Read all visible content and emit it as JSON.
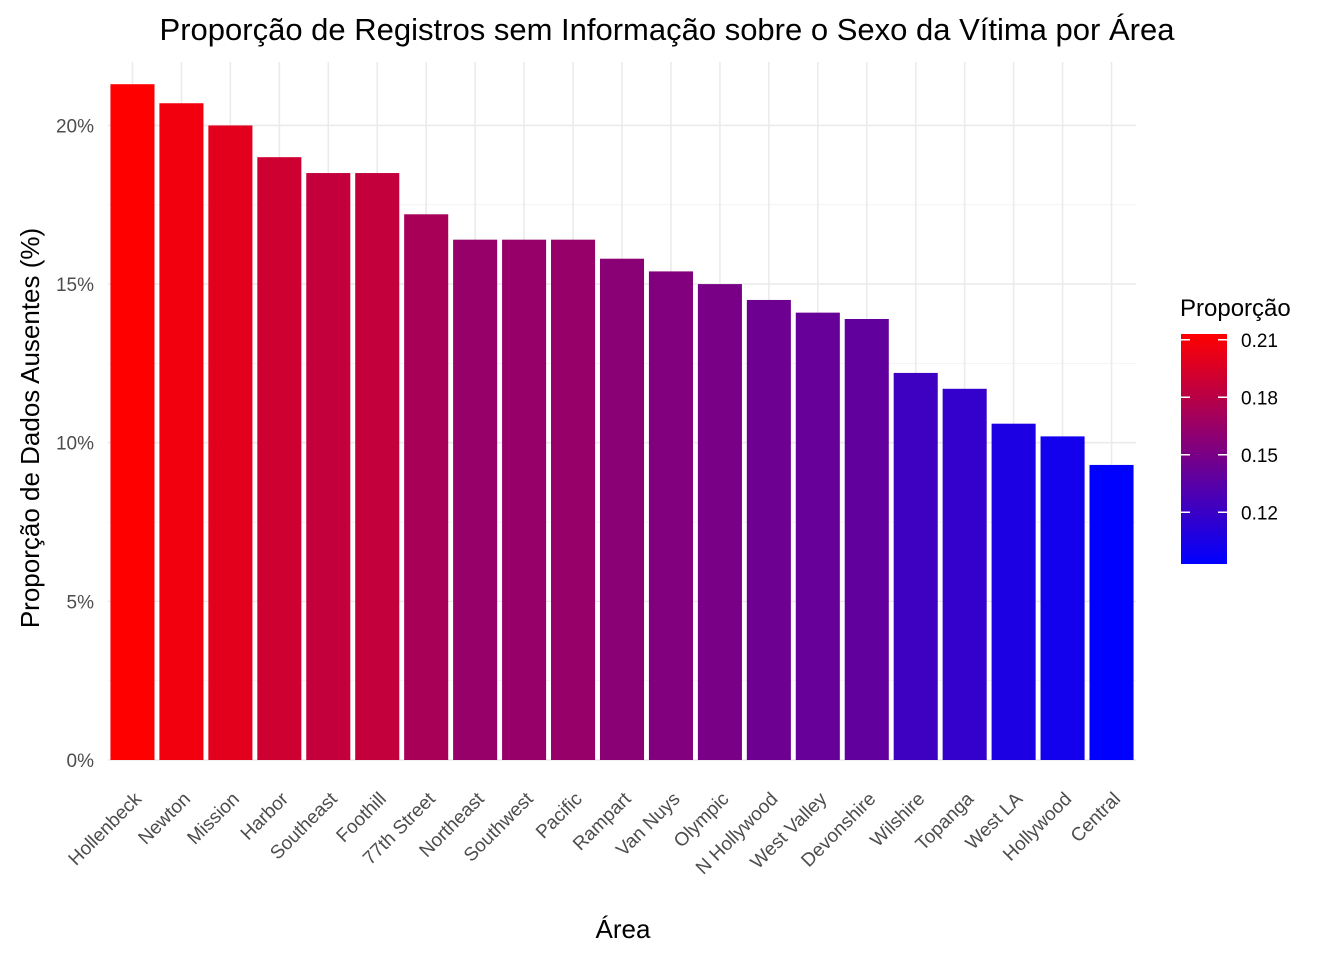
{
  "chart_data": {
    "type": "bar",
    "title": "Proporção de Registros sem Informação sobre o Sexo da Vítima por Área",
    "xlabel": "Área",
    "ylabel": "Proporção de Dados Ausentes (%)",
    "categories": [
      "Hollenbeck",
      "Newton",
      "Mission",
      "Harbor",
      "Southeast",
      "Foothill",
      "77th Street",
      "Northeast",
      "Southwest",
      "Pacific",
      "Rampart",
      "Van Nuys",
      "Olympic",
      "N Hollywood",
      "West Valley",
      "Devonshire",
      "Wilshire",
      "Topanga",
      "West LA",
      "Hollywood",
      "Central"
    ],
    "values": [
      0.213,
      0.207,
      0.2,
      0.19,
      0.185,
      0.185,
      0.172,
      0.164,
      0.164,
      0.164,
      0.158,
      0.154,
      0.15,
      0.145,
      0.141,
      0.139,
      0.122,
      0.117,
      0.106,
      0.102,
      0.093
    ],
    "ylim": [
      0,
      0.22
    ],
    "y_ticks": [
      0,
      0.05,
      0.1,
      0.15,
      0.2
    ],
    "y_tick_labels": [
      "0%",
      "5%",
      "10%",
      "15%",
      "20%"
    ],
    "grid": true,
    "legend": {
      "title": "Proporção",
      "placement": "right",
      "range": [
        0.093,
        0.213
      ],
      "ticks": [
        0.12,
        0.15,
        0.18,
        0.21
      ],
      "tick_labels": [
        "0.12",
        "0.15",
        "0.18",
        "0.21"
      ],
      "low_color": "#0000FF",
      "high_color": "#FF0000"
    }
  }
}
